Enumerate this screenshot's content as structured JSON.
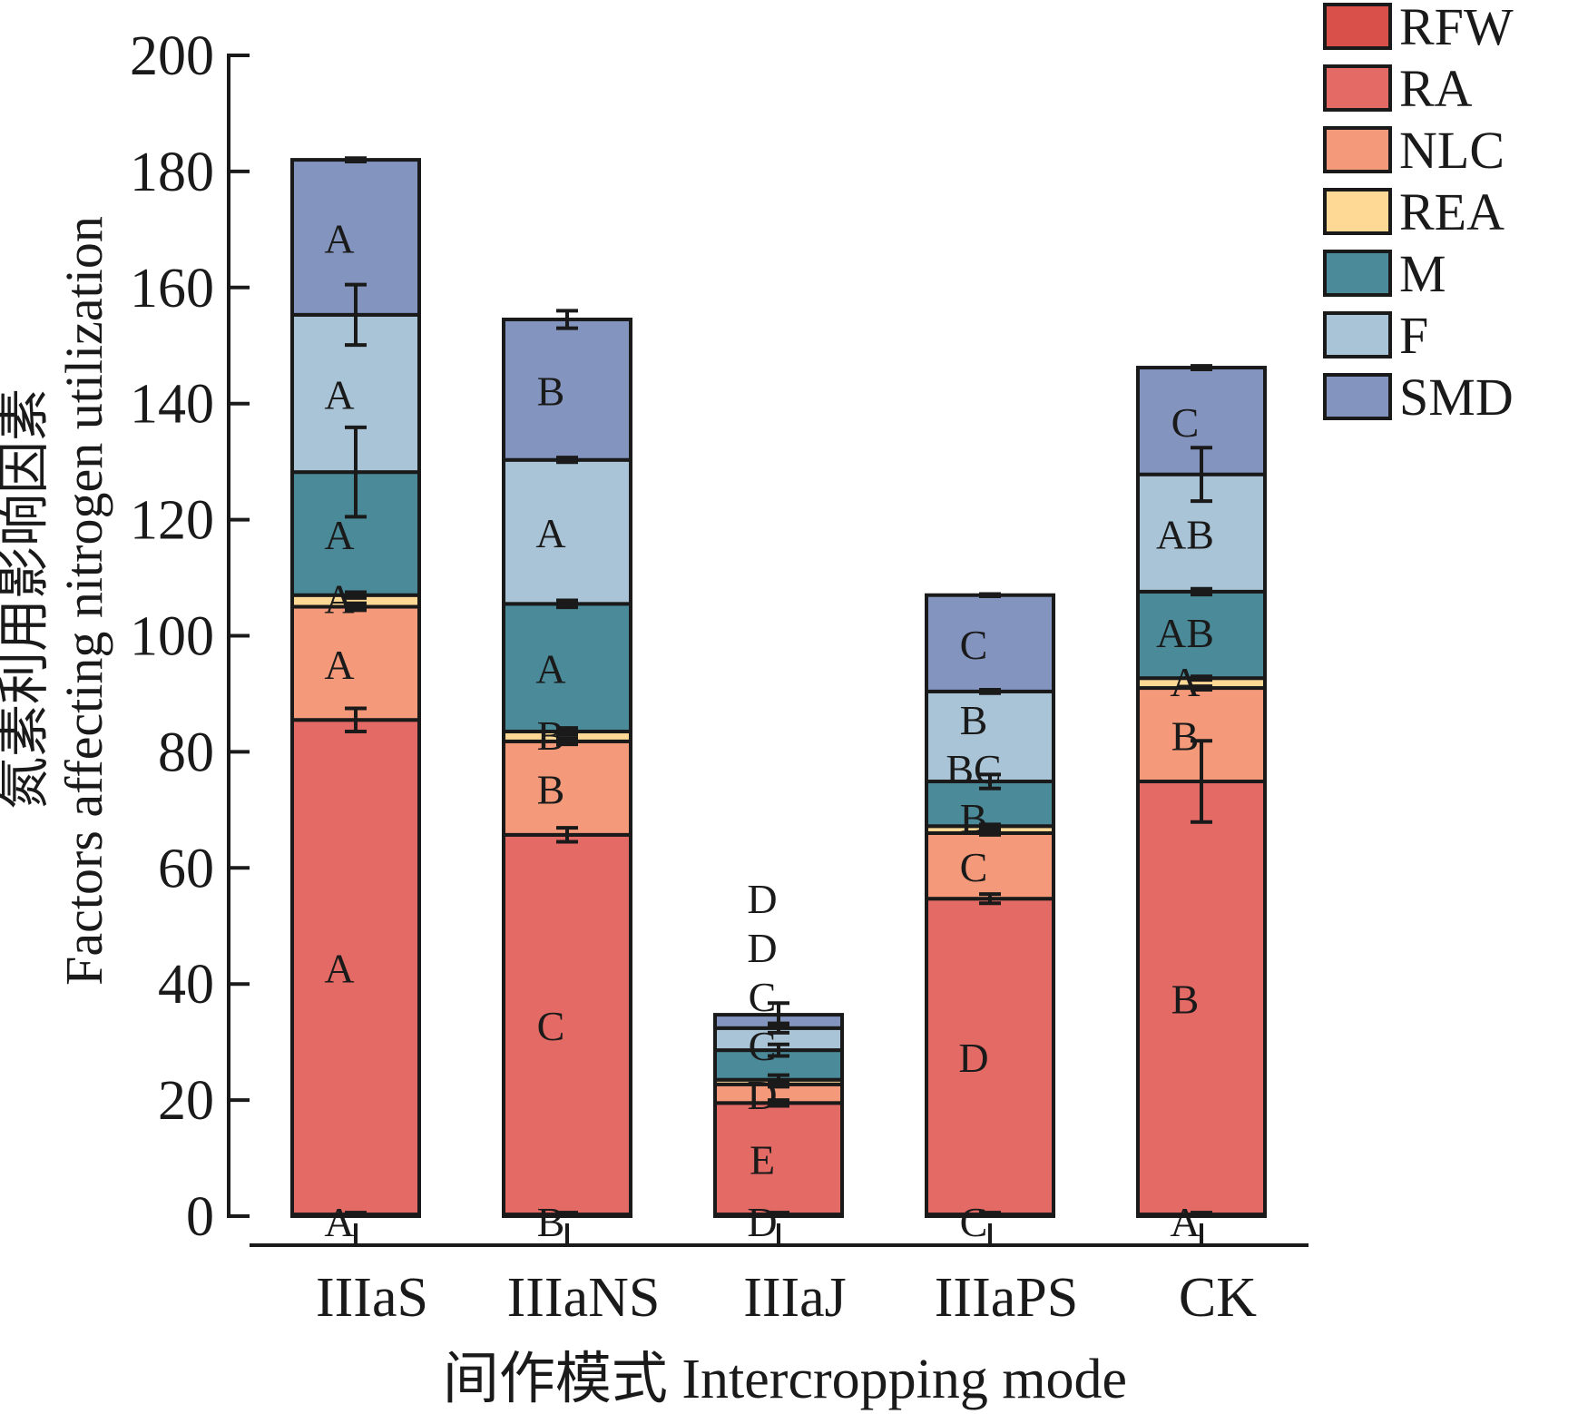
{
  "chart_data": {
    "type": "bar",
    "stacked": true,
    "xlabel": "间作模式 Intercropping mode",
    "ylabel_cn": "氮素利用影响因素",
    "ylabel": "Factors affecting nitrogen utilization",
    "ylim": [
      0,
      200
    ],
    "yticks": [
      0,
      20,
      40,
      60,
      80,
      100,
      120,
      140,
      160,
      180,
      200
    ],
    "grid": false,
    "legend_position": "top-right",
    "categories": [
      "IIIaS",
      "IIIaNS",
      "IIIaJ",
      "IIIaPS",
      "CK"
    ],
    "series": [
      {
        "name": "RFW",
        "color": "#d94f4a",
        "values": [
          0.3,
          0.3,
          0.3,
          0.3,
          0.3
        ],
        "errors": [
          0.3,
          0.3,
          0.3,
          0.3,
          0.3
        ],
        "letters": [
          "A",
          "B",
          "D",
          "C",
          "A"
        ]
      },
      {
        "name": "RA",
        "color": "#e46a65",
        "values": [
          85.2,
          65.4,
          19.2,
          54.4,
          74.6
        ],
        "errors": [
          2.0,
          1.2,
          0.5,
          0.8,
          7.0
        ],
        "letters": [
          "A",
          "C",
          "E",
          "D",
          "B"
        ]
      },
      {
        "name": "NLC",
        "color": "#f49a7a",
        "values": [
          19.5,
          16.1,
          3.2,
          11.3,
          16.1
        ],
        "errors": [
          0.6,
          0.5,
          0.4,
          0.3,
          0.3
        ],
        "letters": [
          "A",
          "B",
          "D",
          "C",
          "B"
        ]
      },
      {
        "name": "REA",
        "color": "#fdd995",
        "values": [
          2.0,
          1.7,
          0.8,
          1.2,
          1.7
        ],
        "errors": [
          0.5,
          0.6,
          0.8,
          0.3,
          0.3
        ],
        "letters": [
          "A",
          "B",
          "C",
          "B",
          "A"
        ]
      },
      {
        "name": "M",
        "color": "#4a8a99",
        "values": [
          21.2,
          22.0,
          5.1,
          7.7,
          14.9
        ],
        "errors": [
          7.7,
          0.6,
          1.0,
          1.2,
          0.5
        ],
        "letters": [
          "A",
          "A",
          "C",
          "BC",
          "AB"
        ]
      },
      {
        "name": "F",
        "color": "#a8c4d6",
        "values": [
          27.1,
          24.8,
          3.8,
          15.5,
          20.2
        ],
        "errors": [
          5.2,
          0.4,
          0.8,
          0.3,
          4.6
        ],
        "letters": [
          "A",
          "A",
          "D",
          "B",
          "AB"
        ]
      },
      {
        "name": "SMD",
        "color": "#8394bf",
        "values": [
          26.7,
          24.2,
          2.3,
          16.6,
          18.4
        ],
        "errors": [
          0.3,
          1.5,
          2.0,
          0.2,
          0.3
        ],
        "letters": [
          "A",
          "B",
          "D",
          "C",
          "C"
        ]
      }
    ]
  }
}
